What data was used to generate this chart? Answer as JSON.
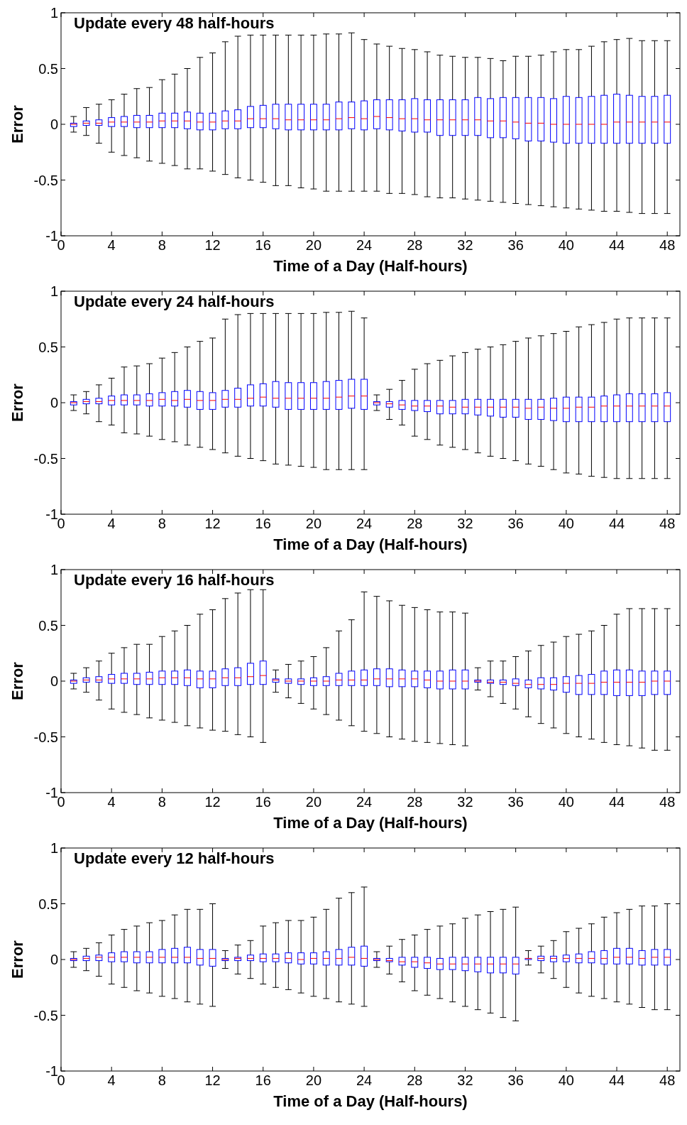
{
  "chart_data": [
    {
      "type": "box",
      "title": "Update every 48 half-hours",
      "xlabel": "Time of a Day (Half-hours)",
      "ylabel": "Error",
      "color": "#0000ff",
      "xlim": [
        0,
        49
      ],
      "xticks": [
        0,
        4,
        8,
        12,
        16,
        20,
        24,
        28,
        32,
        36,
        40,
        44,
        48
      ],
      "ylim": [
        -1,
        1
      ],
      "yticks": [
        -1,
        -0.5,
        0,
        0.5,
        1
      ],
      "x": [
        1,
        2,
        3,
        4,
        5,
        6,
        7,
        8,
        9,
        10,
        11,
        12,
        13,
        14,
        15,
        16,
        17,
        18,
        19,
        20,
        21,
        22,
        23,
        24,
        25,
        26,
        27,
        28,
        29,
        30,
        31,
        32,
        33,
        34,
        35,
        36,
        37,
        38,
        39,
        40,
        41,
        42,
        43,
        44,
        45,
        46,
        47,
        48
      ],
      "boxes": [
        {
          "low": -0.07,
          "q1": -0.02,
          "median": 0,
          "q3": 0.01,
          "high": 0.07
        },
        {
          "low": -0.1,
          "q1": -0.01,
          "median": 0.01,
          "q3": 0.03,
          "high": 0.15
        },
        {
          "low": -0.17,
          "q1": -0.01,
          "median": 0.01,
          "q3": 0.04,
          "high": 0.18
        },
        {
          "low": -0.25,
          "q1": -0.02,
          "median": 0.02,
          "q3": 0.06,
          "high": 0.22
        },
        {
          "low": -0.28,
          "q1": -0.02,
          "median": 0.02,
          "q3": 0.07,
          "high": 0.27
        },
        {
          "low": -0.3,
          "q1": -0.03,
          "median": 0.02,
          "q3": 0.08,
          "high": 0.32
        },
        {
          "low": -0.33,
          "q1": -0.03,
          "median": 0.02,
          "q3": 0.08,
          "high": 0.33
        },
        {
          "low": -0.35,
          "q1": -0.03,
          "median": 0.03,
          "q3": 0.1,
          "high": 0.4
        },
        {
          "low": -0.37,
          "q1": -0.03,
          "median": 0.03,
          "q3": 0.1,
          "high": 0.45
        },
        {
          "low": -0.4,
          "q1": -0.04,
          "median": 0.03,
          "q3": 0.11,
          "high": 0.5
        },
        {
          "low": -0.4,
          "q1": -0.05,
          "median": 0.02,
          "q3": 0.1,
          "high": 0.6
        },
        {
          "low": -0.42,
          "q1": -0.05,
          "median": 0.02,
          "q3": 0.1,
          "high": 0.64
        },
        {
          "low": -0.45,
          "q1": -0.04,
          "median": 0.03,
          "q3": 0.12,
          "high": 0.74
        },
        {
          "low": -0.48,
          "q1": -0.04,
          "median": 0.03,
          "q3": 0.13,
          "high": 0.79
        },
        {
          "low": -0.5,
          "q1": -0.03,
          "median": 0.05,
          "q3": 0.16,
          "high": 0.8
        },
        {
          "low": -0.52,
          "q1": -0.03,
          "median": 0.05,
          "q3": 0.17,
          "high": 0.8
        },
        {
          "low": -0.55,
          "q1": -0.04,
          "median": 0.05,
          "q3": 0.18,
          "high": 0.8
        },
        {
          "low": -0.55,
          "q1": -0.05,
          "median": 0.04,
          "q3": 0.18,
          "high": 0.8
        },
        {
          "low": -0.57,
          "q1": -0.05,
          "median": 0.04,
          "q3": 0.18,
          "high": 0.8
        },
        {
          "low": -0.58,
          "q1": -0.05,
          "median": 0.04,
          "q3": 0.18,
          "high": 0.8
        },
        {
          "low": -0.6,
          "q1": -0.05,
          "median": 0.04,
          "q3": 0.18,
          "high": 0.81
        },
        {
          "low": -0.6,
          "q1": -0.05,
          "median": 0.05,
          "q3": 0.2,
          "high": 0.81
        },
        {
          "low": -0.6,
          "q1": -0.04,
          "median": 0.06,
          "q3": 0.2,
          "high": 0.82
        },
        {
          "low": -0.6,
          "q1": -0.05,
          "median": 0.05,
          "q3": 0.21,
          "high": 0.76
        },
        {
          "low": -0.6,
          "q1": -0.04,
          "median": 0.07,
          "q3": 0.22,
          "high": 0.72
        },
        {
          "low": -0.62,
          "q1": -0.05,
          "median": 0.06,
          "q3": 0.22,
          "high": 0.7
        },
        {
          "low": -0.62,
          "q1": -0.06,
          "median": 0.05,
          "q3": 0.22,
          "high": 0.68
        },
        {
          "low": -0.63,
          "q1": -0.07,
          "median": 0.05,
          "q3": 0.23,
          "high": 0.67
        },
        {
          "low": -0.65,
          "q1": -0.07,
          "median": 0.04,
          "q3": 0.22,
          "high": 0.65
        },
        {
          "low": -0.66,
          "q1": -0.1,
          "median": 0.04,
          "q3": 0.22,
          "high": 0.62
        },
        {
          "low": -0.66,
          "q1": -0.1,
          "median": 0.04,
          "q3": 0.22,
          "high": 0.61
        },
        {
          "low": -0.67,
          "q1": -0.1,
          "median": 0.04,
          "q3": 0.22,
          "high": 0.6
        },
        {
          "low": -0.68,
          "q1": -0.1,
          "median": 0.04,
          "q3": 0.24,
          "high": 0.6
        },
        {
          "low": -0.69,
          "q1": -0.12,
          "median": 0.03,
          "q3": 0.23,
          "high": 0.59
        },
        {
          "low": -0.7,
          "q1": -0.12,
          "median": 0.03,
          "q3": 0.24,
          "high": 0.57
        },
        {
          "low": -0.71,
          "q1": -0.13,
          "median": 0.02,
          "q3": 0.24,
          "high": 0.61
        },
        {
          "low": -0.72,
          "q1": -0.15,
          "median": 0.01,
          "q3": 0.24,
          "high": 0.61
        },
        {
          "low": -0.73,
          "q1": -0.15,
          "median": 0.01,
          "q3": 0.24,
          "high": 0.62
        },
        {
          "low": -0.74,
          "q1": -0.16,
          "median": 0,
          "q3": 0.23,
          "high": 0.65
        },
        {
          "low": -0.75,
          "q1": -0.17,
          "median": 0,
          "q3": 0.25,
          "high": 0.67
        },
        {
          "low": -0.76,
          "q1": -0.17,
          "median": 0,
          "q3": 0.24,
          "high": 0.67
        },
        {
          "low": -0.77,
          "q1": -0.17,
          "median": 0,
          "q3": 0.25,
          "high": 0.7
        },
        {
          "low": -0.78,
          "q1": -0.17,
          "median": 0,
          "q3": 0.26,
          "high": 0.74
        },
        {
          "low": -0.78,
          "q1": -0.17,
          "median": 0.02,
          "q3": 0.27,
          "high": 0.76
        },
        {
          "low": -0.79,
          "q1": -0.17,
          "median": 0.02,
          "q3": 0.26,
          "high": 0.77
        },
        {
          "low": -0.8,
          "q1": -0.17,
          "median": 0.02,
          "q3": 0.25,
          "high": 0.75
        },
        {
          "low": -0.8,
          "q1": -0.17,
          "median": 0.02,
          "q3": 0.25,
          "high": 0.75
        },
        {
          "low": -0.8,
          "q1": -0.17,
          "median": 0.02,
          "q3": 0.26,
          "high": 0.75
        }
      ]
    },
    {
      "type": "box",
      "title": "Update every 24 half-hours",
      "xlabel": "Time of a Day (Half-hours)",
      "ylabel": "Error",
      "color": "#0000ff",
      "xlim": [
        0,
        49
      ],
      "xticks": [
        0,
        4,
        8,
        12,
        16,
        20,
        24,
        28,
        32,
        36,
        40,
        44,
        48
      ],
      "ylim": [
        -1,
        1
      ],
      "yticks": [
        -1,
        -0.5,
        0,
        0.5,
        1
      ],
      "x": [
        1,
        2,
        3,
        4,
        5,
        6,
        7,
        8,
        9,
        10,
        11,
        12,
        13,
        14,
        15,
        16,
        17,
        18,
        19,
        20,
        21,
        22,
        23,
        24,
        25,
        26,
        27,
        28,
        29,
        30,
        31,
        32,
        33,
        34,
        35,
        36,
        37,
        38,
        39,
        40,
        41,
        42,
        43,
        44,
        45,
        46,
        47,
        48
      ],
      "boxes": [
        {
          "low": -0.07,
          "q1": -0.02,
          "median": 0,
          "q3": 0.01,
          "high": 0.07
        },
        {
          "low": -0.1,
          "q1": -0.01,
          "median": 0.01,
          "q3": 0.03,
          "high": 0.1
        },
        {
          "low": -0.17,
          "q1": -0.01,
          "median": 0.01,
          "q3": 0.04,
          "high": 0.16
        },
        {
          "low": -0.2,
          "q1": -0.02,
          "median": 0.02,
          "q3": 0.06,
          "high": 0.22
        },
        {
          "low": -0.27,
          "q1": -0.02,
          "median": 0.02,
          "q3": 0.07,
          "high": 0.32
        },
        {
          "low": -0.28,
          "q1": -0.02,
          "median": 0.02,
          "q3": 0.07,
          "high": 0.33
        },
        {
          "low": -0.3,
          "q1": -0.03,
          "median": 0.02,
          "q3": 0.08,
          "high": 0.35
        },
        {
          "low": -0.33,
          "q1": -0.03,
          "median": 0.03,
          "q3": 0.09,
          "high": 0.4
        },
        {
          "low": -0.35,
          "q1": -0.03,
          "median": 0.02,
          "q3": 0.1,
          "high": 0.45
        },
        {
          "low": -0.38,
          "q1": -0.04,
          "median": 0.03,
          "q3": 0.11,
          "high": 0.5
        },
        {
          "low": -0.4,
          "q1": -0.06,
          "median": 0.02,
          "q3": 0.1,
          "high": 0.55
        },
        {
          "low": -0.42,
          "q1": -0.06,
          "median": 0.02,
          "q3": 0.09,
          "high": 0.58
        },
        {
          "low": -0.45,
          "q1": -0.04,
          "median": 0.03,
          "q3": 0.11,
          "high": 0.75
        },
        {
          "low": -0.48,
          "q1": -0.04,
          "median": 0.03,
          "q3": 0.13,
          "high": 0.79
        },
        {
          "low": -0.5,
          "q1": -0.03,
          "median": 0.04,
          "q3": 0.16,
          "high": 0.8
        },
        {
          "low": -0.52,
          "q1": -0.03,
          "median": 0.05,
          "q3": 0.17,
          "high": 0.8
        },
        {
          "low": -0.55,
          "q1": -0.04,
          "median": 0.04,
          "q3": 0.19,
          "high": 0.8
        },
        {
          "low": -0.56,
          "q1": -0.06,
          "median": 0.04,
          "q3": 0.18,
          "high": 0.8
        },
        {
          "low": -0.57,
          "q1": -0.06,
          "median": 0.04,
          "q3": 0.18,
          "high": 0.8
        },
        {
          "low": -0.58,
          "q1": -0.06,
          "median": 0.04,
          "q3": 0.18,
          "high": 0.8
        },
        {
          "low": -0.6,
          "q1": -0.06,
          "median": 0.04,
          "q3": 0.19,
          "high": 0.81
        },
        {
          "low": -0.6,
          "q1": -0.06,
          "median": 0.05,
          "q3": 0.2,
          "high": 0.81
        },
        {
          "low": -0.6,
          "q1": -0.05,
          "median": 0.06,
          "q3": 0.21,
          "high": 0.82
        },
        {
          "low": -0.6,
          "q1": -0.06,
          "median": 0.06,
          "q3": 0.21,
          "high": 0.76
        },
        {
          "low": -0.07,
          "q1": -0.02,
          "median": 0,
          "q3": 0.01,
          "high": 0.07
        },
        {
          "low": -0.15,
          "q1": -0.04,
          "median": -0.01,
          "q3": 0.01,
          "high": 0.12
        },
        {
          "low": -0.2,
          "q1": -0.06,
          "median": -0.02,
          "q3": 0.02,
          "high": 0.2
        },
        {
          "low": -0.3,
          "q1": -0.07,
          "median": -0.03,
          "q3": 0.02,
          "high": 0.3
        },
        {
          "low": -0.33,
          "q1": -0.08,
          "median": -0.03,
          "q3": 0.02,
          "high": 0.35
        },
        {
          "low": -0.38,
          "q1": -0.1,
          "median": -0.03,
          "q3": 0.02,
          "high": 0.38
        },
        {
          "low": -0.4,
          "q1": -0.1,
          "median": -0.04,
          "q3": 0.02,
          "high": 0.42
        },
        {
          "low": -0.42,
          "q1": -0.1,
          "median": -0.04,
          "q3": 0.03,
          "high": 0.45
        },
        {
          "low": -0.45,
          "q1": -0.11,
          "median": -0.04,
          "q3": 0.03,
          "high": 0.48
        },
        {
          "low": -0.48,
          "q1": -0.12,
          "median": -0.04,
          "q3": 0.03,
          "high": 0.5
        },
        {
          "low": -0.5,
          "q1": -0.13,
          "median": -0.04,
          "q3": 0.03,
          "high": 0.52
        },
        {
          "low": -0.52,
          "q1": -0.13,
          "median": -0.04,
          "q3": 0.03,
          "high": 0.55
        },
        {
          "low": -0.55,
          "q1": -0.15,
          "median": -0.05,
          "q3": 0.03,
          "high": 0.58
        },
        {
          "low": -0.57,
          "q1": -0.15,
          "median": -0.04,
          "q3": 0.03,
          "high": 0.6
        },
        {
          "low": -0.6,
          "q1": -0.16,
          "median": -0.05,
          "q3": 0.04,
          "high": 0.62
        },
        {
          "low": -0.63,
          "q1": -0.17,
          "median": -0.05,
          "q3": 0.05,
          "high": 0.64
        },
        {
          "low": -0.64,
          "q1": -0.17,
          "median": -0.04,
          "q3": 0.05,
          "high": 0.68
        },
        {
          "low": -0.66,
          "q1": -0.17,
          "median": -0.04,
          "q3": 0.05,
          "high": 0.7
        },
        {
          "low": -0.67,
          "q1": -0.17,
          "median": -0.03,
          "q3": 0.06,
          "high": 0.72
        },
        {
          "low": -0.68,
          "q1": -0.17,
          "median": -0.03,
          "q3": 0.07,
          "high": 0.75
        },
        {
          "low": -0.68,
          "q1": -0.17,
          "median": -0.03,
          "q3": 0.08,
          "high": 0.76
        },
        {
          "low": -0.68,
          "q1": -0.17,
          "median": -0.03,
          "q3": 0.08,
          "high": 0.76
        },
        {
          "low": -0.68,
          "q1": -0.17,
          "median": -0.03,
          "q3": 0.08,
          "high": 0.76
        },
        {
          "low": -0.68,
          "q1": -0.17,
          "median": -0.03,
          "q3": 0.09,
          "high": 0.76
        }
      ]
    },
    {
      "type": "box",
      "title": "Update every 16 half-hours",
      "xlabel": "Time of a Day (Half-hours)",
      "ylabel": "Error",
      "color": "#0000ff",
      "xlim": [
        0,
        49
      ],
      "xticks": [
        0,
        4,
        8,
        12,
        16,
        20,
        24,
        28,
        32,
        36,
        40,
        44,
        48
      ],
      "ylim": [
        -1,
        1
      ],
      "yticks": [
        -1,
        -0.5,
        0,
        0.5,
        1
      ],
      "x": [
        1,
        2,
        3,
        4,
        5,
        6,
        7,
        8,
        9,
        10,
        11,
        12,
        13,
        14,
        15,
        16,
        17,
        18,
        19,
        20,
        21,
        22,
        23,
        24,
        25,
        26,
        27,
        28,
        29,
        30,
        31,
        32,
        33,
        34,
        35,
        36,
        37,
        38,
        39,
        40,
        41,
        42,
        43,
        44,
        45,
        46,
        47,
        48
      ],
      "boxes": [
        {
          "low": -0.07,
          "q1": -0.02,
          "median": 0,
          "q3": 0.01,
          "high": 0.07
        },
        {
          "low": -0.1,
          "q1": -0.01,
          "median": 0.01,
          "q3": 0.03,
          "high": 0.12
        },
        {
          "low": -0.17,
          "q1": -0.01,
          "median": 0.01,
          "q3": 0.04,
          "high": 0.18
        },
        {
          "low": -0.25,
          "q1": -0.02,
          "median": 0.02,
          "q3": 0.06,
          "high": 0.25
        },
        {
          "low": -0.28,
          "q1": -0.02,
          "median": 0.02,
          "q3": 0.07,
          "high": 0.3
        },
        {
          "low": -0.3,
          "q1": -0.03,
          "median": 0.02,
          "q3": 0.07,
          "high": 0.33
        },
        {
          "low": -0.33,
          "q1": -0.03,
          "median": 0.02,
          "q3": 0.08,
          "high": 0.33
        },
        {
          "low": -0.35,
          "q1": -0.03,
          "median": 0.03,
          "q3": 0.09,
          "high": 0.4
        },
        {
          "low": -0.37,
          "q1": -0.03,
          "median": 0.03,
          "q3": 0.09,
          "high": 0.45
        },
        {
          "low": -0.4,
          "q1": -0.04,
          "median": 0.03,
          "q3": 0.1,
          "high": 0.5
        },
        {
          "low": -0.42,
          "q1": -0.06,
          "median": 0.02,
          "q3": 0.09,
          "high": 0.6
        },
        {
          "low": -0.44,
          "q1": -0.06,
          "median": 0.02,
          "q3": 0.09,
          "high": 0.64
        },
        {
          "low": -0.45,
          "q1": -0.04,
          "median": 0.03,
          "q3": 0.11,
          "high": 0.74
        },
        {
          "low": -0.48,
          "q1": -0.04,
          "median": 0.03,
          "q3": 0.12,
          "high": 0.79
        },
        {
          "low": -0.5,
          "q1": -0.03,
          "median": 0.04,
          "q3": 0.16,
          "high": 0.82
        },
        {
          "low": -0.55,
          "q1": -0.03,
          "median": 0.05,
          "q3": 0.18,
          "high": 0.82
        },
        {
          "low": -0.1,
          "q1": -0.01,
          "median": 0.01,
          "q3": 0.02,
          "high": 0.1
        },
        {
          "low": -0.15,
          "q1": -0.02,
          "median": 0,
          "q3": 0.02,
          "high": 0.15
        },
        {
          "low": -0.2,
          "q1": -0.03,
          "median": 0,
          "q3": 0.02,
          "high": 0.18
        },
        {
          "low": -0.25,
          "q1": -0.04,
          "median": 0,
          "q3": 0.03,
          "high": 0.22
        },
        {
          "low": -0.3,
          "q1": -0.04,
          "median": 0,
          "q3": 0.04,
          "high": 0.3
        },
        {
          "low": -0.35,
          "q1": -0.04,
          "median": 0.01,
          "q3": 0.07,
          "high": 0.45
        },
        {
          "low": -0.4,
          "q1": -0.04,
          "median": 0.01,
          "q3": 0.09,
          "high": 0.55
        },
        {
          "low": -0.45,
          "q1": -0.04,
          "median": 0.01,
          "q3": 0.1,
          "high": 0.8
        },
        {
          "low": -0.47,
          "q1": -0.04,
          "median": 0.02,
          "q3": 0.11,
          "high": 0.76
        },
        {
          "low": -0.5,
          "q1": -0.05,
          "median": 0.02,
          "q3": 0.11,
          "high": 0.72
        },
        {
          "low": -0.52,
          "q1": -0.05,
          "median": 0.02,
          "q3": 0.1,
          "high": 0.68
        },
        {
          "low": -0.54,
          "q1": -0.05,
          "median": 0.02,
          "q3": 0.09,
          "high": 0.66
        },
        {
          "low": -0.55,
          "q1": -0.06,
          "median": 0.01,
          "q3": 0.09,
          "high": 0.64
        },
        {
          "low": -0.56,
          "q1": -0.07,
          "median": 0,
          "q3": 0.09,
          "high": 0.62
        },
        {
          "low": -0.57,
          "q1": -0.07,
          "median": 0,
          "q3": 0.1,
          "high": 0.62
        },
        {
          "low": -0.58,
          "q1": -0.07,
          "median": 0,
          "q3": 0.1,
          "high": 0.61
        },
        {
          "low": -0.08,
          "q1": -0.01,
          "median": 0,
          "q3": 0.01,
          "high": 0.12
        },
        {
          "low": -0.14,
          "q1": -0.02,
          "median": -0.01,
          "q3": 0.01,
          "high": 0.18
        },
        {
          "low": -0.2,
          "q1": -0.03,
          "median": -0.01,
          "q3": 0.01,
          "high": 0.18
        },
        {
          "low": -0.25,
          "q1": -0.04,
          "median": -0.02,
          "q3": 0.02,
          "high": 0.22
        },
        {
          "low": -0.32,
          "q1": -0.06,
          "median": -0.03,
          "q3": 0.01,
          "high": 0.27
        },
        {
          "low": -0.38,
          "q1": -0.07,
          "median": -0.03,
          "q3": 0.03,
          "high": 0.32
        },
        {
          "low": -0.42,
          "q1": -0.08,
          "median": -0.03,
          "q3": 0.03,
          "high": 0.35
        },
        {
          "low": -0.47,
          "q1": -0.1,
          "median": -0.02,
          "q3": 0.04,
          "high": 0.4
        },
        {
          "low": -0.5,
          "q1": -0.12,
          "median": -0.02,
          "q3": 0.05,
          "high": 0.42
        },
        {
          "low": -0.52,
          "q1": -0.12,
          "median": -0.02,
          "q3": 0.06,
          "high": 0.45
        },
        {
          "low": -0.55,
          "q1": -0.12,
          "median": -0.01,
          "q3": 0.09,
          "high": 0.5
        },
        {
          "low": -0.57,
          "q1": -0.13,
          "median": -0.01,
          "q3": 0.1,
          "high": 0.6
        },
        {
          "low": -0.58,
          "q1": -0.13,
          "median": -0.01,
          "q3": 0.1,
          "high": 0.65
        },
        {
          "low": -0.6,
          "q1": -0.13,
          "median": -0.01,
          "q3": 0.09,
          "high": 0.65
        },
        {
          "low": -0.62,
          "q1": -0.12,
          "median": 0,
          "q3": 0.09,
          "high": 0.65
        },
        {
          "low": -0.62,
          "q1": -0.12,
          "median": 0,
          "q3": 0.09,
          "high": 0.65
        }
      ]
    },
    {
      "type": "box",
      "title": "Update every 12 half-hours",
      "xlabel": "Time of a Day (Half-hours)",
      "ylabel": "Error",
      "color": "#0000ff",
      "xlim": [
        0,
        49
      ],
      "xticks": [
        0,
        4,
        8,
        12,
        16,
        20,
        24,
        28,
        32,
        36,
        40,
        44,
        48
      ],
      "ylim": [
        -1,
        1
      ],
      "yticks": [
        -1,
        -0.5,
        0,
        0.5,
        1
      ],
      "x": [
        1,
        2,
        3,
        4,
        5,
        6,
        7,
        8,
        9,
        10,
        11,
        12,
        13,
        14,
        15,
        16,
        17,
        18,
        19,
        20,
        21,
        22,
        23,
        24,
        25,
        26,
        27,
        28,
        29,
        30,
        31,
        32,
        33,
        34,
        35,
        36,
        37,
        38,
        39,
        40,
        41,
        42,
        43,
        44,
        45,
        46,
        47,
        48
      ],
      "boxes": [
        {
          "low": -0.07,
          "q1": -0.01,
          "median": 0,
          "q3": 0.01,
          "high": 0.07
        },
        {
          "low": -0.1,
          "q1": -0.01,
          "median": 0.01,
          "q3": 0.03,
          "high": 0.1
        },
        {
          "low": -0.15,
          "q1": -0.01,
          "median": 0.02,
          "q3": 0.04,
          "high": 0.15
        },
        {
          "low": -0.22,
          "q1": -0.02,
          "median": 0.02,
          "q3": 0.06,
          "high": 0.22
        },
        {
          "low": -0.25,
          "q1": -0.02,
          "median": 0.02,
          "q3": 0.07,
          "high": 0.27
        },
        {
          "low": -0.28,
          "q1": -0.03,
          "median": 0.02,
          "q3": 0.07,
          "high": 0.3
        },
        {
          "low": -0.3,
          "q1": -0.03,
          "median": 0.02,
          "q3": 0.07,
          "high": 0.33
        },
        {
          "low": -0.33,
          "q1": -0.03,
          "median": 0.02,
          "q3": 0.09,
          "high": 0.35
        },
        {
          "low": -0.35,
          "q1": -0.03,
          "median": 0.02,
          "q3": 0.1,
          "high": 0.4
        },
        {
          "low": -0.38,
          "q1": -0.03,
          "median": 0.02,
          "q3": 0.11,
          "high": 0.45
        },
        {
          "low": -0.4,
          "q1": -0.05,
          "median": 0.01,
          "q3": 0.09,
          "high": 0.45
        },
        {
          "low": -0.42,
          "q1": -0.06,
          "median": 0.01,
          "q3": 0.09,
          "high": 0.5
        },
        {
          "low": -0.08,
          "q1": -0.01,
          "median": 0,
          "q3": 0.01,
          "high": 0.08
        },
        {
          "low": -0.13,
          "q1": -0.01,
          "median": 0.01,
          "q3": 0.02,
          "high": 0.13
        },
        {
          "low": -0.17,
          "q1": -0.01,
          "median": 0.01,
          "q3": 0.04,
          "high": 0.17
        },
        {
          "low": -0.22,
          "q1": -0.02,
          "median": 0.01,
          "q3": 0.05,
          "high": 0.3
        },
        {
          "low": -0.25,
          "q1": -0.02,
          "median": 0.01,
          "q3": 0.05,
          "high": 0.33
        },
        {
          "low": -0.27,
          "q1": -0.03,
          "median": 0.01,
          "q3": 0.06,
          "high": 0.35
        },
        {
          "low": -0.3,
          "q1": -0.04,
          "median": 0,
          "q3": 0.06,
          "high": 0.35
        },
        {
          "low": -0.33,
          "q1": -0.04,
          "median": 0.01,
          "q3": 0.06,
          "high": 0.38
        },
        {
          "low": -0.35,
          "q1": -0.05,
          "median": 0.01,
          "q3": 0.07,
          "high": 0.45
        },
        {
          "low": -0.38,
          "q1": -0.05,
          "median": 0.01,
          "q3": 0.09,
          "high": 0.55
        },
        {
          "low": -0.4,
          "q1": -0.05,
          "median": 0.02,
          "q3": 0.11,
          "high": 0.6
        },
        {
          "low": -0.42,
          "q1": -0.06,
          "median": 0.01,
          "q3": 0.12,
          "high": 0.65
        },
        {
          "low": -0.07,
          "q1": -0.01,
          "median": 0,
          "q3": 0.01,
          "high": 0.07
        },
        {
          "low": -0.13,
          "q1": -0.02,
          "median": -0.01,
          "q3": 0.01,
          "high": 0.12
        },
        {
          "low": -0.2,
          "q1": -0.05,
          "median": -0.02,
          "q3": 0.02,
          "high": 0.18
        },
        {
          "low": -0.28,
          "q1": -0.07,
          "median": -0.02,
          "q3": 0.02,
          "high": 0.22
        },
        {
          "low": -0.32,
          "q1": -0.08,
          "median": -0.03,
          "q3": 0.02,
          "high": 0.27
        },
        {
          "low": -0.35,
          "q1": -0.09,
          "median": -0.04,
          "q3": 0.01,
          "high": 0.3
        },
        {
          "low": -0.38,
          "q1": -0.09,
          "median": -0.04,
          "q3": 0.02,
          "high": 0.32
        },
        {
          "low": -0.42,
          "q1": -0.1,
          "median": -0.04,
          "q3": 0.02,
          "high": 0.37
        },
        {
          "low": -0.45,
          "q1": -0.11,
          "median": -0.04,
          "q3": 0.02,
          "high": 0.4
        },
        {
          "low": -0.48,
          "q1": -0.12,
          "median": -0.04,
          "q3": 0.02,
          "high": 0.43
        },
        {
          "low": -0.52,
          "q1": -0.12,
          "median": -0.04,
          "q3": 0.02,
          "high": 0.45
        },
        {
          "low": -0.55,
          "q1": -0.13,
          "median": -0.04,
          "q3": 0.02,
          "high": 0.47
        },
        {
          "low": -0.05,
          "q1": 0,
          "median": 0.01,
          "q3": 0.01,
          "high": 0.08
        },
        {
          "low": -0.12,
          "q1": -0.01,
          "median": 0.01,
          "q3": 0.03,
          "high": 0.12
        },
        {
          "low": -0.17,
          "q1": -0.02,
          "median": 0.01,
          "q3": 0.03,
          "high": 0.17
        },
        {
          "low": -0.25,
          "q1": -0.02,
          "median": 0.01,
          "q3": 0.04,
          "high": 0.25
        },
        {
          "low": -0.3,
          "q1": -0.03,
          "median": 0.01,
          "q3": 0.05,
          "high": 0.28
        },
        {
          "low": -0.33,
          "q1": -0.03,
          "median": 0.01,
          "q3": 0.07,
          "high": 0.32
        },
        {
          "low": -0.35,
          "q1": -0.04,
          "median": 0.01,
          "q3": 0.08,
          "high": 0.38
        },
        {
          "low": -0.38,
          "q1": -0.04,
          "median": 0.02,
          "q3": 0.1,
          "high": 0.42
        },
        {
          "low": -0.4,
          "q1": -0.04,
          "median": 0.02,
          "q3": 0.1,
          "high": 0.45
        },
        {
          "low": -0.43,
          "q1": -0.05,
          "median": 0.01,
          "q3": 0.08,
          "high": 0.48
        },
        {
          "low": -0.45,
          "q1": -0.05,
          "median": 0.02,
          "q3": 0.09,
          "high": 0.48
        },
        {
          "low": -0.45,
          "q1": -0.05,
          "median": 0.02,
          "q3": 0.09,
          "high": 0.5
        }
      ]
    }
  ]
}
